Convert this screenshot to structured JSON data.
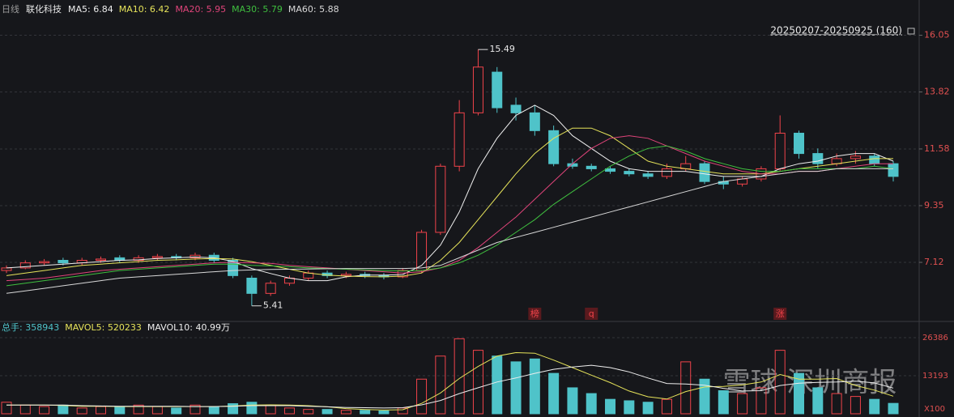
{
  "chart_data": {
    "type": "candlestick",
    "period_label": "日线",
    "title": "联化科技",
    "range_label": "20250207-20250925 (160)",
    "watermark": "雪球 深圳商报",
    "up_color": "#f0434a",
    "down_color": "#4fc3c9",
    "grid": true,
    "ylim": [
      4.86,
      16.8
    ],
    "yticks": [
      7.12,
      9.35,
      11.58,
      13.82,
      16.05
    ],
    "open": [
      6.8,
      6.9,
      7.1,
      7.2,
      7.1,
      7.2,
      7.3,
      7.2,
      7.3,
      7.35,
      7.3,
      7.4,
      7.2,
      6.5,
      5.9,
      6.3,
      6.5,
      6.7,
      6.6,
      6.65,
      6.6,
      6.55,
      6.8,
      8.3,
      10.9,
      13.0,
      14.6,
      13.3,
      13.0,
      12.3,
      11.0,
      10.9,
      10.8,
      10.7,
      10.6,
      10.5,
      10.8,
      11.0,
      10.3,
      10.2,
      10.4,
      10.8,
      12.2,
      11.4,
      11.0,
      11.2,
      11.3,
      11.0
    ],
    "close": [
      6.9,
      7.1,
      7.15,
      7.1,
      7.2,
      7.25,
      7.2,
      7.3,
      7.35,
      7.3,
      7.4,
      7.2,
      6.6,
      5.9,
      6.3,
      6.5,
      6.7,
      6.6,
      6.65,
      6.6,
      6.55,
      6.8,
      8.3,
      10.9,
      13.0,
      14.8,
      13.2,
      13.0,
      12.3,
      11.0,
      10.9,
      10.8,
      10.7,
      10.6,
      10.5,
      10.8,
      11.0,
      10.3,
      10.2,
      10.4,
      10.8,
      12.2,
      11.4,
      11.0,
      11.2,
      11.3,
      11.0,
      10.5
    ],
    "high": [
      7.0,
      7.2,
      7.25,
      7.3,
      7.3,
      7.35,
      7.4,
      7.4,
      7.45,
      7.45,
      7.5,
      7.5,
      7.3,
      6.6,
      6.4,
      6.6,
      6.8,
      6.8,
      6.75,
      6.75,
      6.7,
      6.9,
      8.4,
      11.0,
      13.5,
      15.49,
      14.8,
      13.6,
      13.3,
      12.5,
      11.2,
      11.0,
      10.9,
      10.8,
      10.7,
      11.0,
      11.3,
      11.1,
      10.5,
      10.5,
      10.9,
      12.9,
      12.3,
      11.6,
      11.4,
      11.5,
      11.4,
      11.1
    ],
    "low": [
      6.7,
      6.85,
      7.0,
      7.0,
      7.0,
      7.1,
      7.1,
      7.1,
      7.2,
      7.2,
      7.2,
      7.1,
      6.5,
      5.41,
      5.8,
      6.2,
      6.4,
      6.5,
      6.5,
      6.5,
      6.45,
      6.5,
      6.7,
      8.2,
      10.7,
      12.9,
      13.0,
      12.7,
      12.1,
      10.9,
      10.8,
      10.7,
      10.6,
      10.5,
      10.4,
      10.4,
      10.7,
      10.2,
      10.0,
      10.1,
      10.3,
      10.7,
      11.2,
      10.8,
      10.9,
      11.0,
      10.9,
      10.3
    ],
    "markers": [
      null,
      null,
      null,
      null,
      null,
      null,
      null,
      null,
      null,
      null,
      null,
      null,
      null,
      null,
      null,
      null,
      null,
      null,
      null,
      null,
      null,
      null,
      null,
      null,
      null,
      null,
      null,
      null,
      "榜",
      null,
      null,
      "q",
      null,
      null,
      null,
      null,
      null,
      null,
      null,
      null,
      null,
      "涨",
      null,
      null,
      null,
      null,
      null,
      null
    ],
    "series": [
      {
        "name": "MA5: 6.84",
        "color": "#eeeeee",
        "values": [
          6.9,
          6.95,
          7.0,
          7.05,
          7.1,
          7.15,
          7.2,
          7.22,
          7.27,
          7.3,
          7.33,
          7.3,
          7.16,
          6.88,
          6.68,
          6.5,
          6.4,
          6.4,
          6.55,
          6.62,
          6.62,
          6.64,
          7.0,
          7.8,
          9.1,
          10.8,
          12.0,
          12.9,
          13.3,
          12.9,
          12.1,
          11.6,
          11.1,
          10.8,
          10.7,
          10.7,
          10.7,
          10.6,
          10.5,
          10.5,
          10.5,
          10.8,
          11.0,
          11.1,
          11.3,
          11.4,
          11.4,
          11.1
        ]
      },
      {
        "name": "MA10: 6.42",
        "color": "#e6e35a",
        "values": [
          6.6,
          6.7,
          6.8,
          6.9,
          7.0,
          7.05,
          7.1,
          7.15,
          7.2,
          7.22,
          7.25,
          7.27,
          7.25,
          7.15,
          7.0,
          6.85,
          6.7,
          6.62,
          6.58,
          6.56,
          6.55,
          6.58,
          6.7,
          7.2,
          7.9,
          8.8,
          9.7,
          10.6,
          11.4,
          12.0,
          12.4,
          12.4,
          12.1,
          11.6,
          11.1,
          10.9,
          10.8,
          10.7,
          10.6,
          10.6,
          10.6,
          10.7,
          10.8,
          10.9,
          11.0,
          11.1,
          11.2,
          11.2
        ]
      },
      {
        "name": "MA20: 5.95",
        "color": "#e0447a",
        "values": [
          6.4,
          6.45,
          6.5,
          6.6,
          6.7,
          6.8,
          6.85,
          6.9,
          6.95,
          7.0,
          7.05,
          7.1,
          7.12,
          7.1,
          7.08,
          7.0,
          6.95,
          6.9,
          6.85,
          6.8,
          6.75,
          6.7,
          6.75,
          6.9,
          7.2,
          7.7,
          8.3,
          8.9,
          9.6,
          10.3,
          11.0,
          11.6,
          12.0,
          12.1,
          12.0,
          11.7,
          11.4,
          11.1,
          10.9,
          10.7,
          10.6,
          10.6,
          10.7,
          10.7,
          10.8,
          10.9,
          11.0,
          11.0
        ]
      },
      {
        "name": "MA30: 5.79",
        "color": "#3fbf3f",
        "values": [
          6.2,
          6.3,
          6.4,
          6.5,
          6.6,
          6.7,
          6.8,
          6.85,
          6.9,
          6.95,
          7.0,
          7.05,
          7.05,
          7.0,
          6.98,
          6.95,
          6.9,
          6.88,
          6.85,
          6.82,
          6.8,
          6.78,
          6.8,
          6.9,
          7.1,
          7.4,
          7.8,
          8.3,
          8.8,
          9.4,
          9.9,
          10.4,
          10.9,
          11.3,
          11.6,
          11.7,
          11.5,
          11.2,
          11.0,
          10.8,
          10.7,
          10.7,
          10.8,
          10.8,
          10.8,
          10.8,
          10.9,
          10.8
        ]
      },
      {
        "name": "MA60: 5.88",
        "color": "#d8d8d8",
        "values": [
          5.9,
          6.0,
          6.1,
          6.2,
          6.3,
          6.4,
          6.5,
          6.55,
          6.6,
          6.65,
          6.7,
          6.75,
          6.8,
          6.82,
          6.84,
          6.85,
          6.86,
          6.87,
          6.88,
          6.88,
          6.88,
          6.88,
          6.9,
          7.0,
          7.3,
          7.6,
          7.9,
          8.1,
          8.3,
          8.5,
          8.7,
          8.9,
          9.1,
          9.3,
          9.5,
          9.7,
          9.9,
          10.1,
          10.3,
          10.4,
          10.5,
          10.6,
          10.7,
          10.7,
          10.8,
          10.8,
          10.8,
          10.8
        ]
      }
    ],
    "volume": {
      "name": "总手: 358943",
      "color": "#4fc3c9",
      "unit_label": "X100",
      "ylim": [
        0,
        29750
      ],
      "yticks": [
        13193,
        26386
      ],
      "values": [
        4000,
        3000,
        2500,
        3000,
        2000,
        2500,
        2500,
        3000,
        2500,
        2000,
        3000,
        2500,
        3500,
        4000,
        3000,
        2000,
        1500,
        1500,
        1200,
        1200,
        1000,
        2000,
        12000,
        20000,
        26000,
        22000,
        20000,
        18000,
        19000,
        14000,
        9000,
        7000,
        5000,
        4500,
        4000,
        5000,
        18000,
        12000,
        8000,
        7000,
        9000,
        22000,
        14000,
        9000,
        7000,
        6000,
        5000,
        3600
      ],
      "series": [
        {
          "name": "MAVOL5: 520233",
          "color": "#e6e35a",
          "values": [
            3000,
            3000,
            3000,
            2900,
            2600,
            2600,
            2500,
            2500,
            2500,
            2500,
            2500,
            2500,
            2700,
            3000,
            3100,
            3000,
            2800,
            2400,
            1800,
            1500,
            1300,
            1400,
            3600,
            7200,
            12200,
            16400,
            20000,
            21200,
            21000,
            18600,
            16000,
            13400,
            10800,
            7900,
            5900,
            5100,
            7700,
            9300,
            9500,
            10000,
            11000,
            13600,
            12000,
            12000,
            12200,
            9800,
            8200,
            6100
          ]
        },
        {
          "name": "MAVOL10: 40.99万",
          "color": "#eeeeee",
          "values": [
            3000,
            3000,
            3000,
            3000,
            2800,
            2700,
            2600,
            2600,
            2600,
            2600,
            2500,
            2500,
            2600,
            2800,
            2800,
            2800,
            2600,
            2400,
            2200,
            2100,
            2000,
            2100,
            3100,
            4600,
            7000,
            9000,
            11000,
            12400,
            14000,
            15400,
            16200,
            16800,
            16000,
            14500,
            12400,
            10500,
            10300,
            9900,
            8800,
            7900,
            8000,
            9800,
            10600,
            10900,
            11000,
            11300,
            10700,
            8900
          ]
        }
      ]
    }
  }
}
